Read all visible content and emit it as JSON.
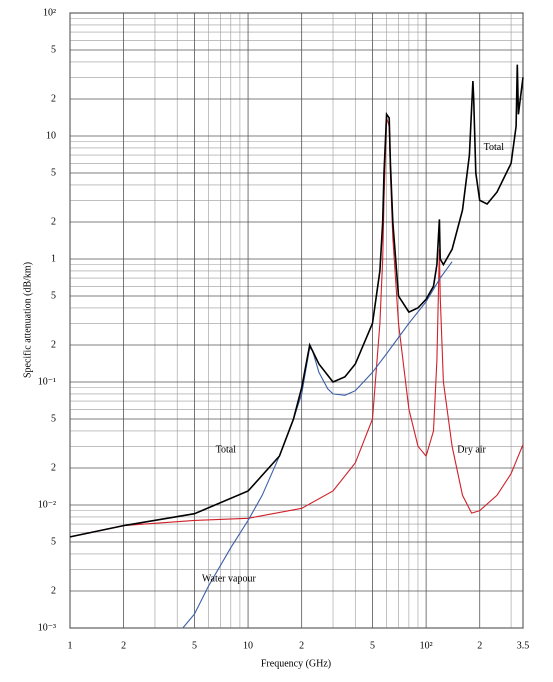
{
  "chart_data": {
    "type": "line",
    "xscale": "log",
    "yscale": "log",
    "grid": true,
    "xlabel": "Frequency (GHz)",
    "ylabel": "Specific attenuation (dB/km)",
    "xlim": [
      1,
      350
    ],
    "ylim": [
      0.001,
      100
    ],
    "xticks": [
      1,
      2,
      5,
      10,
      {
        "value": 20,
        "label": "2"
      },
      {
        "value": 50,
        "label": "5"
      },
      {
        "value": 100,
        "label": "10²"
      },
      {
        "value": 200,
        "label": "2"
      },
      {
        "value": 350,
        "label": "3.5"
      }
    ],
    "xminor": [
      3,
      4,
      6,
      7,
      8,
      9,
      30,
      40,
      60,
      70,
      80,
      90,
      300
    ],
    "yticks": [
      {
        "value": 0.001,
        "label": "10⁻³"
      },
      {
        "value": 0.002,
        "label": "2"
      },
      {
        "value": 0.005,
        "label": "5"
      },
      {
        "value": 0.01,
        "label": "10⁻²"
      },
      {
        "value": 0.02,
        "label": "2"
      },
      {
        "value": 0.05,
        "label": "5"
      },
      {
        "value": 0.1,
        "label": "10⁻¹"
      },
      {
        "value": 0.2,
        "label": "2"
      },
      {
        "value": 0.5,
        "label": "5"
      },
      1,
      2,
      5,
      10,
      {
        "value": 20,
        "label": "2"
      },
      {
        "value": 50,
        "label": "5"
      },
      {
        "value": 100,
        "label": "10²"
      }
    ],
    "yminor": [
      0.003,
      0.004,
      0.006,
      0.007,
      0.008,
      0.009,
      0.03,
      0.04,
      0.06,
      0.07,
      0.08,
      0.09,
      0.3,
      0.4,
      0.6,
      0.7,
      0.8,
      0.9,
      3,
      4,
      6,
      7,
      8,
      9,
      30,
      40,
      60,
      70,
      80,
      90
    ],
    "series": [
      {
        "name": "Dry air",
        "color": "#d0202a",
        "x": [
          1,
          2,
          5,
          10,
          20,
          30,
          40,
          50,
          55,
          57,
          58,
          60,
          62,
          63,
          65,
          70,
          80,
          90,
          100,
          110,
          115,
          118.75,
          120,
          125,
          140,
          160,
          180,
          200,
          250,
          300,
          350
        ],
        "values": [
          0.0055,
          0.0068,
          0.0075,
          0.0078,
          0.0094,
          0.013,
          0.022,
          0.05,
          0.3,
          1,
          3,
          14,
          12,
          5,
          1.5,
          0.3,
          0.06,
          0.03,
          0.025,
          0.04,
          0.15,
          1.2,
          0.5,
          0.1,
          0.03,
          0.012,
          0.0086,
          0.009,
          0.012,
          0.018,
          0.031
        ]
      },
      {
        "name": "Water vapour",
        "color": "#3b5ea8",
        "x": [
          4.3,
          5,
          6,
          8,
          10,
          12,
          15,
          18,
          20,
          21,
          22.2,
          23,
          25,
          28,
          30,
          35,
          40,
          50,
          60,
          70,
          80,
          100,
          120,
          140
        ],
        "values": [
          0.001,
          0.0013,
          0.0022,
          0.0045,
          0.0075,
          0.012,
          0.025,
          0.05,
          0.08,
          0.12,
          0.19,
          0.18,
          0.12,
          0.088,
          0.08,
          0.078,
          0.085,
          0.12,
          0.17,
          0.23,
          0.3,
          0.45,
          0.7,
          0.95
        ]
      },
      {
        "name": "Total",
        "color": "#000000",
        "x": [
          1,
          2,
          5,
          10,
          15,
          18,
          20,
          22.2,
          25,
          30,
          35,
          40,
          50,
          55,
          57,
          58,
          60,
          62,
          63,
          65,
          70,
          80,
          90,
          100,
          110,
          115,
          118.75,
          120,
          125,
          140,
          160,
          175,
          183,
          185,
          190,
          200,
          220,
          250,
          300,
          320,
          325,
          330,
          350
        ],
        "values": [
          0.0055,
          0.0068,
          0.0085,
          0.013,
          0.025,
          0.05,
          0.09,
          0.2,
          0.14,
          0.1,
          0.11,
          0.14,
          0.3,
          0.8,
          2,
          5,
          15,
          14,
          6,
          2,
          0.5,
          0.37,
          0.4,
          0.47,
          0.6,
          0.9,
          2.1,
          1,
          0.9,
          1.2,
          2.5,
          7,
          28,
          20,
          5,
          3,
          2.8,
          3.5,
          6,
          12,
          38,
          15,
          30
        ]
      }
    ],
    "annotations": [
      {
        "text": "Total",
        "x": 7.5,
        "y": 0.028
      },
      {
        "text": "Total",
        "x": 240,
        "y": 8
      },
      {
        "text": "Dry air",
        "x": 180,
        "y": 0.028
      },
      {
        "text": "Water vapour",
        "x": 7.8,
        "y": 0.0025
      }
    ]
  }
}
